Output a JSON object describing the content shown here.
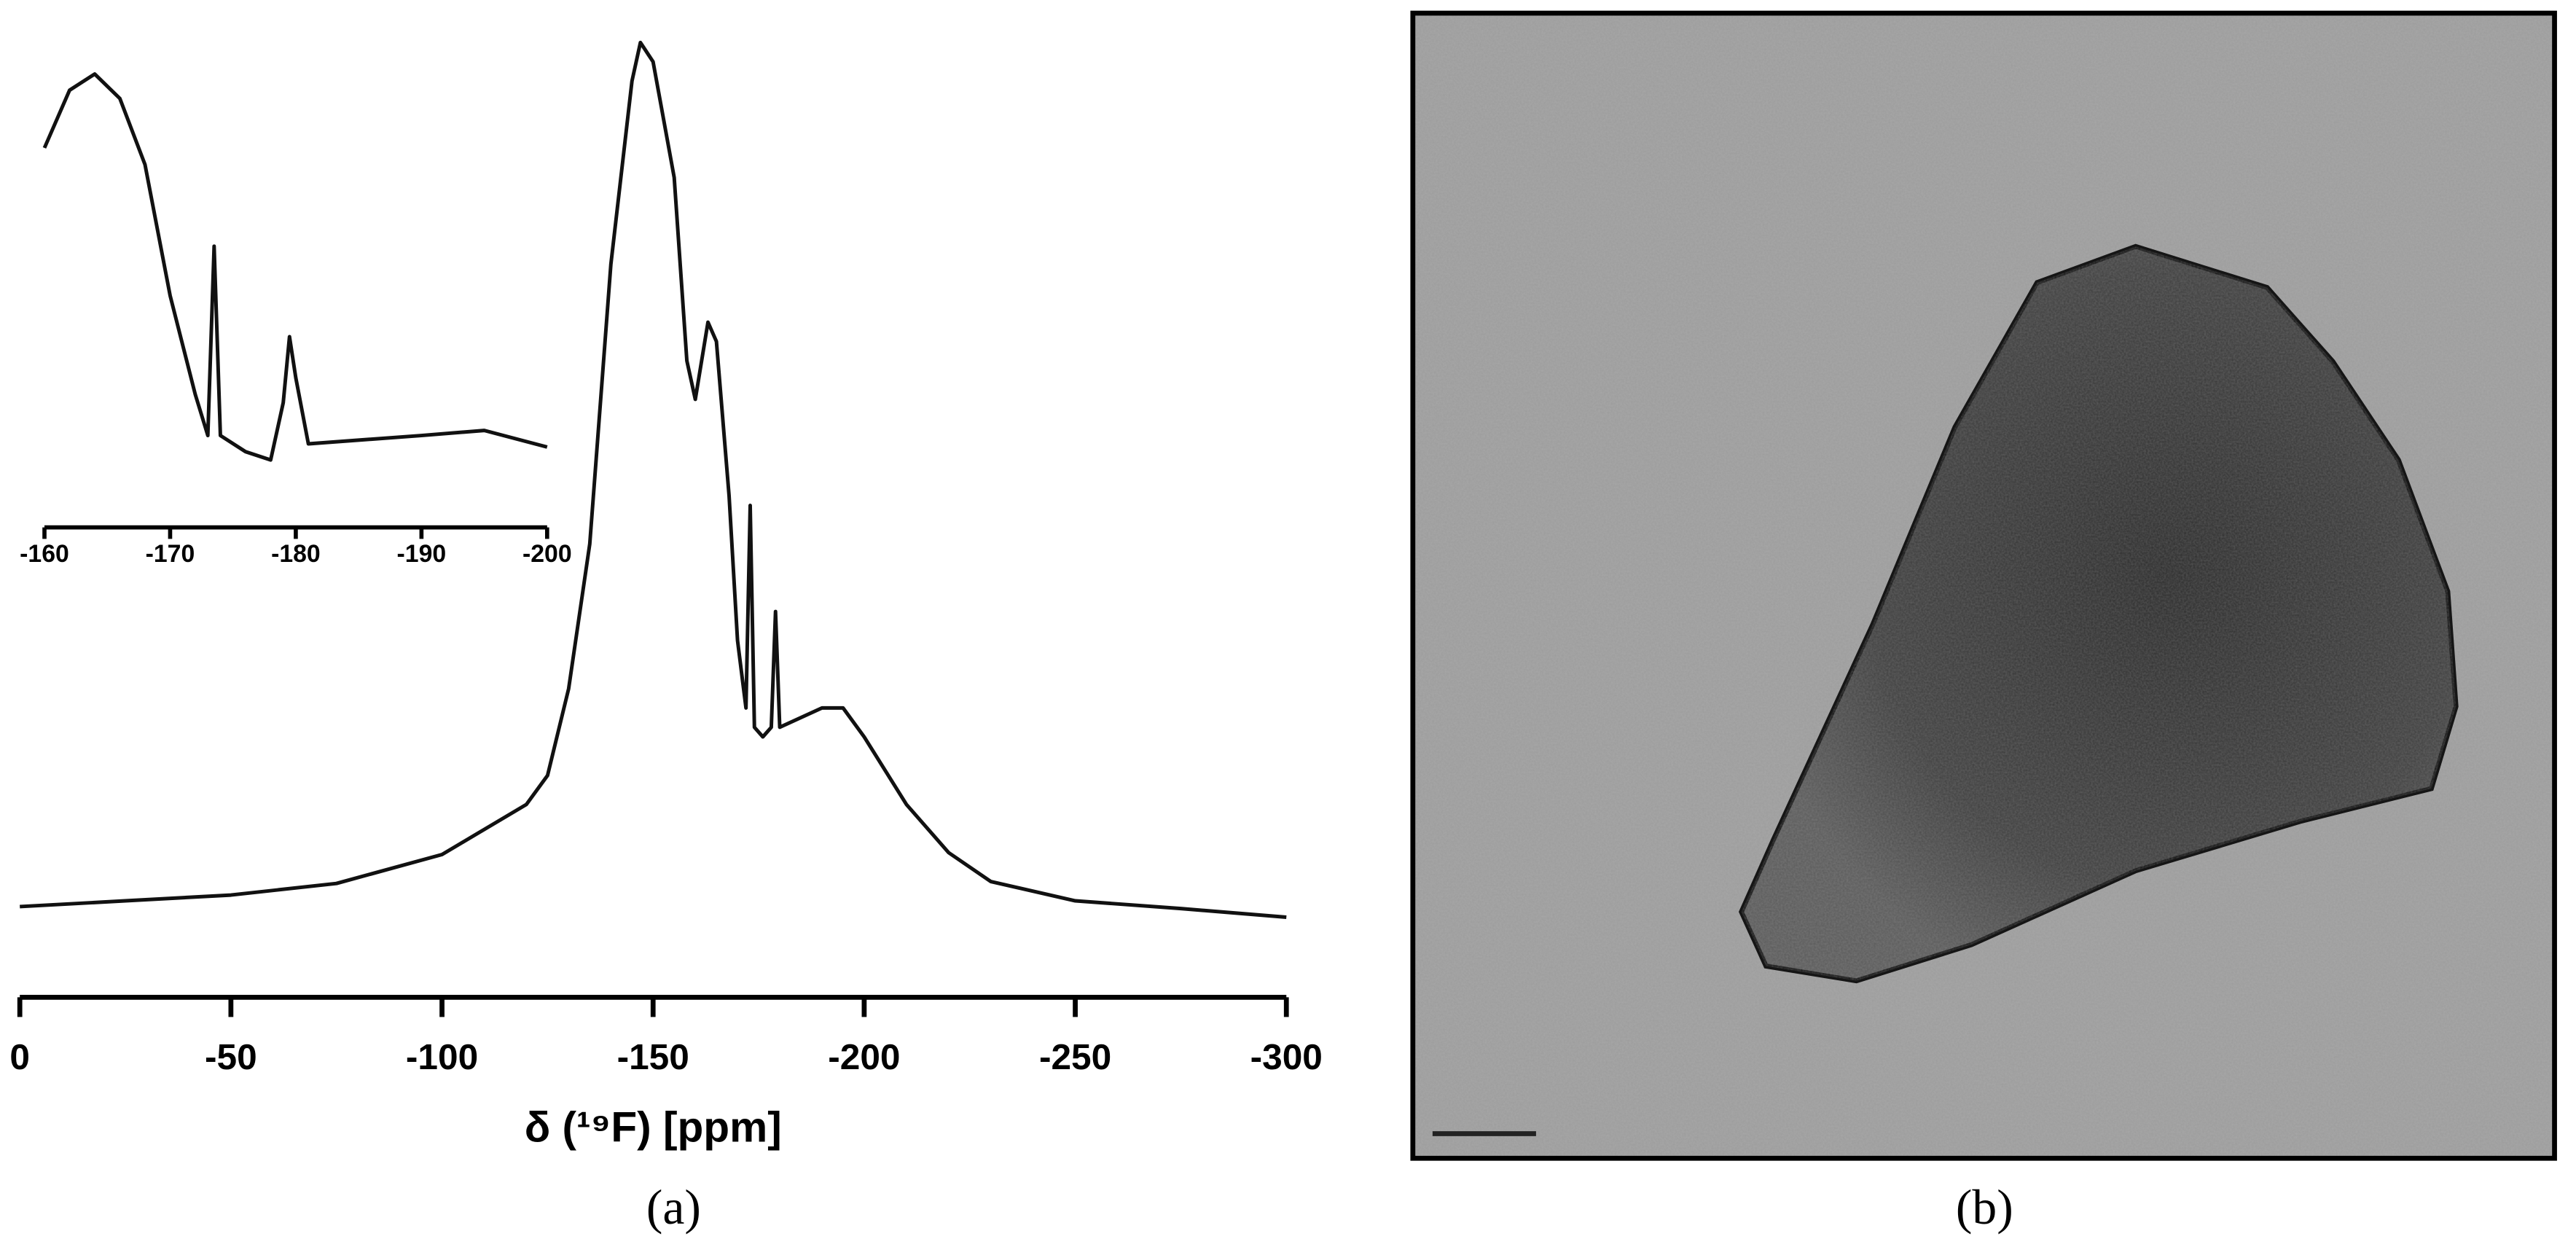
{
  "chart_data": [
    {
      "type": "line",
      "x_label": "δ (¹⁹F) [ppm]",
      "color": "#111111",
      "x": [
        0,
        -25,
        -50,
        -75,
        -100,
        -110,
        -120,
        -125,
        -130,
        -135,
        -140,
        -145,
        -147,
        -150,
        -155,
        -158,
        -160,
        -163,
        -165,
        -168,
        -170,
        -172,
        -173,
        -174,
        -176,
        -178,
        -179,
        -180,
        -185,
        -190,
        -195,
        -200,
        -210,
        -220,
        -230,
        -250,
        -275,
        -300
      ],
      "values": [
        9.4,
        10,
        10.6,
        11.8,
        14.8,
        17.4,
        20,
        23,
        32,
        47,
        76,
        95,
        99,
        97,
        85,
        66,
        62,
        70,
        68,
        52,
        37,
        30,
        51,
        28,
        27,
        28,
        40,
        28,
        29,
        30,
        30,
        27,
        20,
        15,
        12,
        10,
        9.2,
        8.3
      ],
      "xlim": [
        0,
        -300
      ],
      "ylim": [
        0,
        100
      ],
      "xticks": [
        0,
        -50,
        -100,
        -150,
        -200,
        -250,
        -300
      ]
    },
    {
      "type": "line",
      "color": "#111111",
      "x": [
        -160,
        -162,
        -164,
        -166,
        -168,
        -170,
        -172,
        -173,
        -173.5,
        -174,
        -176,
        -178,
        -179,
        -179.5,
        -180,
        -181,
        -185,
        -190,
        -195,
        -200
      ],
      "values": [
        82.2,
        94.7,
        98.2,
        92.9,
        78.6,
        50.2,
        28.8,
        19.9,
        60.9,
        19.9,
        16.4,
        14.6,
        27,
        41.3,
        32.4,
        18.1,
        18.9,
        19.9,
        21,
        17.4
      ],
      "xlim": [
        -160,
        -200
      ],
      "ylim": [
        0,
        100
      ],
      "xticks": [
        -160,
        -170,
        -180,
        -190,
        -200
      ]
    }
  ],
  "panel_labels": [
    "(a)",
    "(b)"
  ]
}
